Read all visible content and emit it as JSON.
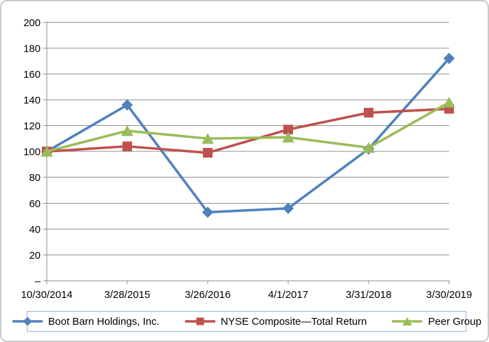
{
  "chart_data": {
    "type": "line",
    "title": "",
    "xlabel": "",
    "ylabel": "",
    "categories": [
      "10/30/2014",
      "3/28/2015",
      "3/26/2016",
      "4/1/2017",
      "3/31/2018",
      "3/30/2019"
    ],
    "series": [
      {
        "name": "Boot Barn Holdings, Inc.",
        "marker": "diamond",
        "color": "#4f81bd",
        "values": [
          100,
          136,
          53,
          56,
          102,
          172
        ]
      },
      {
        "name": "NYSE Composite—Total Return",
        "marker": "square",
        "color": "#c0504d",
        "values": [
          100,
          104,
          99,
          117,
          130,
          133
        ]
      },
      {
        "name": "Peer Group",
        "marker": "triangle",
        "color": "#9bbb59",
        "values": [
          100,
          116,
          110,
          111,
          103,
          138
        ]
      }
    ],
    "ylim": [
      0,
      200
    ],
    "ytick_step": 20,
    "ytick_labels": [
      "200",
      "180",
      "160",
      "140",
      "120",
      "100",
      "80",
      "60",
      "40",
      "20",
      "–"
    ],
    "grid": true,
    "legend_position": "bottom",
    "colors": {
      "gridline": "#8e8e8e",
      "axis": "#8e8e8e",
      "text": "#000000",
      "legend_border": "#95b3d7",
      "chart_border": "#c9c9c9",
      "background": "#ffffff"
    }
  }
}
